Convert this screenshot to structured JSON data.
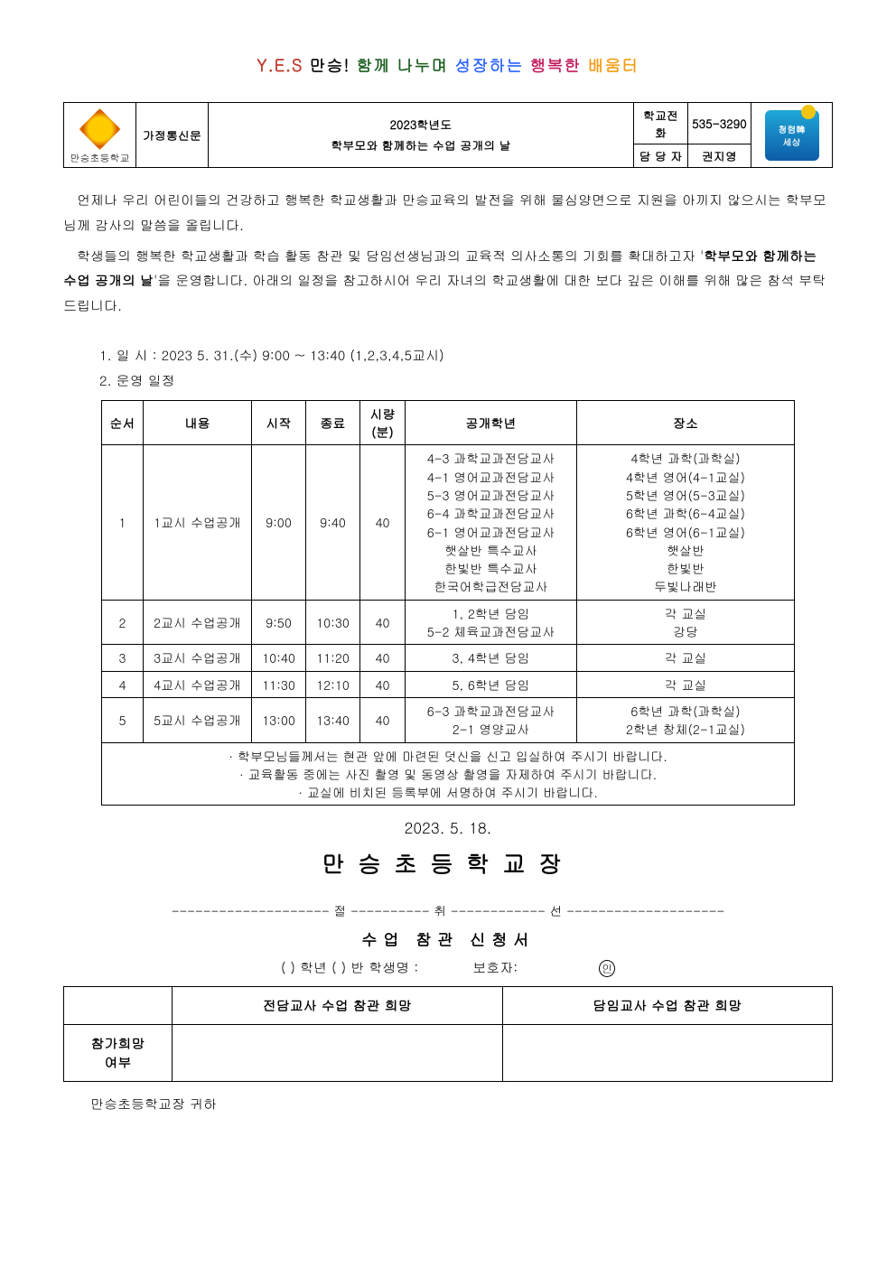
{
  "tagline": {
    "yes": "Y.E.S",
    "t1": "만승!",
    "t2": "함께 나누며",
    "t3": "성장하는",
    "t4": "행복한",
    "t5": "배움터"
  },
  "header": {
    "schoolname": "만승초등학교",
    "letter_type": "가정통신문",
    "title_line1": "2023학년도",
    "title_line2": "학부모와 함께하는 수업 공개의 날",
    "phone_label": "학교전화",
    "phone_value": "535-3290",
    "person_label": "담 당 자",
    "person_value": "권지영",
    "stamp_text": "청렴韓\n세상"
  },
  "body": {
    "p1": "언제나 우리 어린이들의 건강하고 행복한 학교생활과 만승교육의 발전을 위해 물심양면으로 지원을 아끼지 않으시는 학부모님께 감사의 말씀을 올립니다.",
    "p2a": "학생들의 행복한 학교생활과 학습 활동 참관 및 담임선생님과의 교육적 의사소통의 기회를 확대하고자 '",
    "p2b": "학부모와 함께하는 수업 공개의 날",
    "p2c": "'을 운영합니다. 아래의 일정을 참고하시어 우리 자녀의 학교생활에 대한 보다 깊은 이해를 위해 많은 참석 부탁드립니다.",
    "item1": "1. 일 시 : 2023 5. 31.(수) 9:00 ~ 13:40 (1,2,3,4,5교시)",
    "item2": "2. 운영 일정"
  },
  "schedule": {
    "headers": [
      "순서",
      "내용",
      "시작",
      "종료",
      "시량\n(분)",
      "공개학년",
      "장소"
    ],
    "rows": [
      {
        "no": "1",
        "name": "1교시 수업공개",
        "start": "9:00",
        "end": "9:40",
        "dur": "40",
        "grades": "4-3 과학교과전담교사\n4-1 영어교과전담교사\n5-3 영어교과전담교사\n6-4 과학교과전담교사\n6-1 영어교과전담교사\n햇살반 특수교사\n한빛반 특수교사\n한국어학급전담교사",
        "place": "4학년 과학(과학실)\n4학년 영어(4-1교실)\n5학년 영어(5-3교실)\n6학년 과학(6-4교실)\n6학년 영어(6-1교실)\n햇살반\n한빛반\n두빛나래반"
      },
      {
        "no": "2",
        "name": "2교시 수업공개",
        "start": "9:50",
        "end": "10:30",
        "dur": "40",
        "grades": "1, 2학년 담임\n5-2 체육교과전담교사",
        "place": "각 교실\n강당"
      },
      {
        "no": "3",
        "name": "3교시 수업공개",
        "start": "10:40",
        "end": "11:20",
        "dur": "40",
        "grades": "3, 4학년 담임",
        "place": "각 교실"
      },
      {
        "no": "4",
        "name": "4교시 수업공개",
        "start": "11:30",
        "end": "12:10",
        "dur": "40",
        "grades": "5, 6학년 담임",
        "place": "각 교실"
      },
      {
        "no": "5",
        "name": "5교시 수업공개",
        "start": "13:00",
        "end": "13:40",
        "dur": "40",
        "grades": "6-3 과학교과전담교사\n2-1 영양교사",
        "place": "6학년 과학(과학실)\n2학년 창체(2-1교실)"
      }
    ],
    "notes": "· 학부모님들께서는 현관 앞에 마련된 덧신을 신고 입실하여 주시기 바랍니다.\n· 교육활동 중에는 사진 촬영 및 동영상 촬영을 자제하여 주시기 바랍니다.\n· 교실에 비치된 등록부에 서명하여 주시기 바랍니다."
  },
  "date_line": "2023.  5.  18.",
  "principal_line": "만승초등학교장",
  "cut_line": "-------------------- 절 ---------- 취 ------------ 선 --------------------",
  "application": {
    "title": "수업 참관 신청서",
    "form_line_a": "(     ) 학년  (     ) 반   학생명 :",
    "form_line_b": "보호자:",
    "stamp_mark": "인",
    "col1": "전담교사 수업 참관 희망",
    "col2": "담임교사 수업 참관 희망",
    "rowhead": "참가희망\n여부"
  },
  "footer": "만승초등학교장 귀하"
}
